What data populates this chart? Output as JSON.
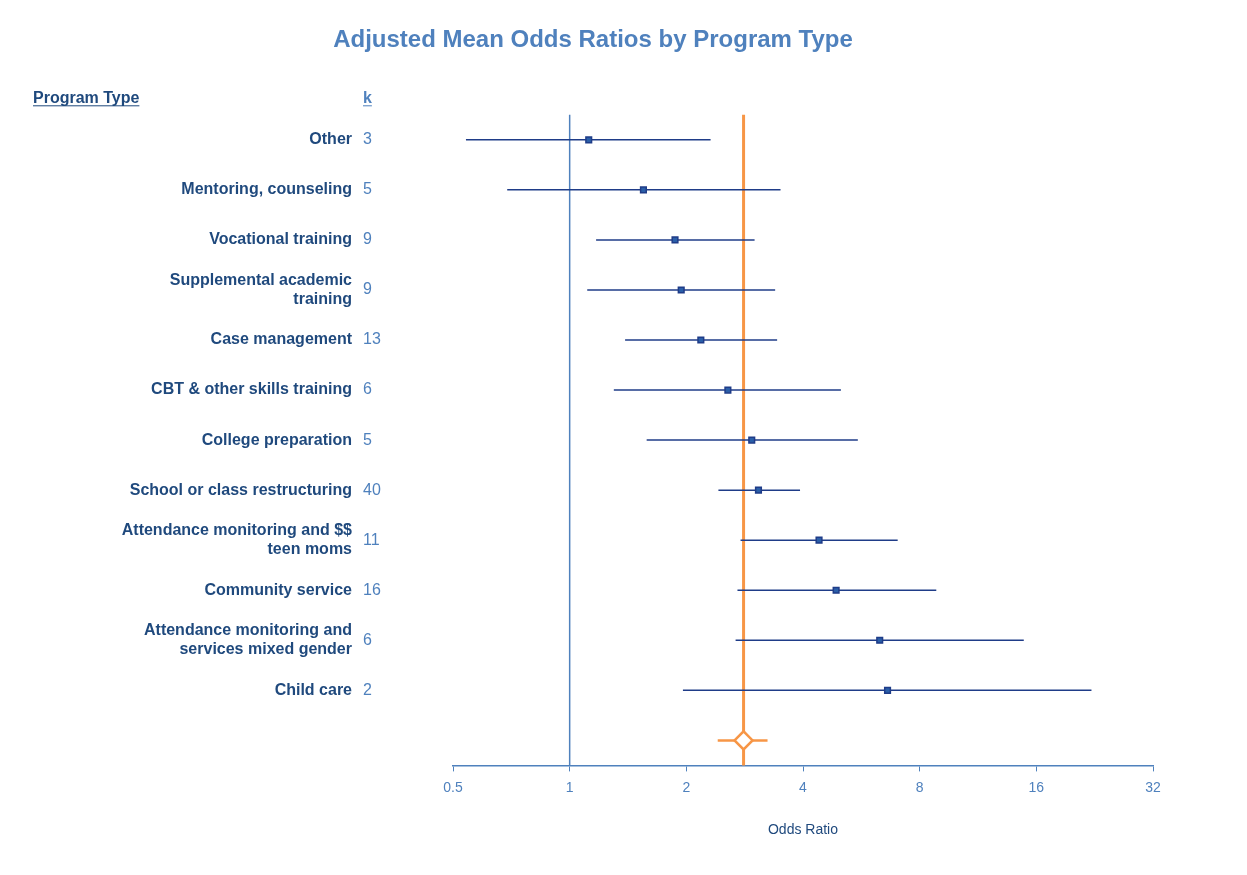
{
  "chart_data": {
    "type": "scatter",
    "title": "Adjusted Mean Odds Ratios by Program Type",
    "orientation": "horizontal",
    "annotations": [
      "Program Type",
      "k"
    ],
    "xlabel": "Odds Ratio",
    "categories": [
      "Other",
      "Mentoring, counseling",
      "Vocational training",
      "Supplemental academic training",
      "Case management",
      "CBT & other skills training",
      "College preparation",
      "School or class restructuring",
      "Attendance monitoring and $$ teen moms",
      "Community service",
      "Attendance monitoring and services mixed gender",
      "Child care",
      null
    ],
    "y2_categories": [
      "3",
      "5",
      "9",
      "9",
      "13",
      "6",
      "5",
      "40",
      "11",
      "16",
      "6",
      "2",
      null
    ],
    "series": [
      {
        "color": "#2a5ea8",
        "marker": "square",
        "values": [
          1.12,
          1.55,
          1.87,
          1.94,
          2.18,
          2.56,
          2.95,
          3.07,
          4.4,
          4.87,
          6.31,
          6.61,
          null
        ],
        "errors": [
          [
            0.54,
            2.31
          ],
          [
            0.69,
            3.5
          ],
          [
            1.17,
            3.0
          ],
          [
            1.11,
            3.39
          ],
          [
            1.39,
            3.43
          ],
          [
            1.3,
            5.01
          ],
          [
            1.58,
            5.54
          ],
          [
            2.42,
            3.93
          ],
          [
            2.76,
            7.02
          ],
          [
            2.71,
            8.83
          ],
          [
            2.68,
            14.85
          ],
          [
            1.96,
            22.2
          ],
          null
        ]
      },
      {
        "color": "#f79646",
        "marker": "diamond",
        "values": [
          null,
          null,
          null,
          null,
          null,
          null,
          null,
          null,
          null,
          null,
          null,
          null,
          2.81
        ],
        "errors": [
          null,
          null,
          null,
          null,
          null,
          null,
          null,
          null,
          null,
          null,
          null,
          null,
          [
            2.41,
            3.24
          ]
        ]
      }
    ],
    "ref_lines": [
      {
        "axis": "x",
        "value": 1,
        "color": "#4f81bd"
      },
      {
        "axis": "x",
        "value": 2.81,
        "color": "#f79646"
      }
    ],
    "xlim": [
      0.5,
      32
    ],
    "xticks": [
      0.5,
      1,
      2,
      4,
      8,
      16,
      32
    ],
    "log": "x",
    "grid": false,
    "legend": false
  }
}
